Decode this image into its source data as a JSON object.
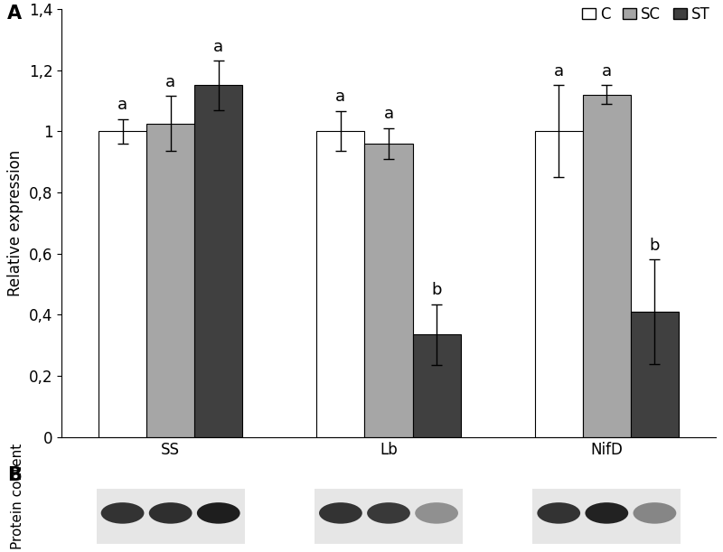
{
  "chart_data": {
    "type": "bar",
    "panel_label": "A",
    "y_label": "Relative expression",
    "categories": [
      "SS",
      "Lb",
      "NifD"
    ],
    "series": [
      {
        "name": "C",
        "color": "#ffffff",
        "values": [
          1.0,
          1.0,
          1.0
        ],
        "error": [
          0.04,
          0.065,
          0.15
        ],
        "letters": [
          "a",
          "a",
          "a"
        ]
      },
      {
        "name": "SC",
        "color": "#a6a6a6",
        "values": [
          1.025,
          0.96,
          1.12
        ],
        "error": [
          0.09,
          0.05,
          0.03
        ],
        "letters": [
          "a",
          "a",
          "a"
        ]
      },
      {
        "name": "ST",
        "color": "#404040",
        "values": [
          1.15,
          0.335,
          0.41
        ],
        "error": [
          0.08,
          0.1,
          0.17
        ],
        "letters": [
          "a",
          "b",
          "b"
        ]
      }
    ],
    "ylim": [
      0,
      1.4
    ],
    "yticks": [
      0,
      {
        "value": 0.2,
        "label": "0,2"
      },
      {
        "value": 0.4,
        "label": "0,4"
      },
      {
        "value": 0.6,
        "label": "0,6"
      },
      {
        "value": 0.8,
        "label": "0,8"
      },
      1,
      {
        "value": 1.2,
        "label": "1,2"
      },
      {
        "value": 1.4,
        "label": "1,4"
      }
    ],
    "legend": "upper right",
    "grid": false,
    "blot_panel_label": "B",
    "blot_label": "Protein content"
  }
}
